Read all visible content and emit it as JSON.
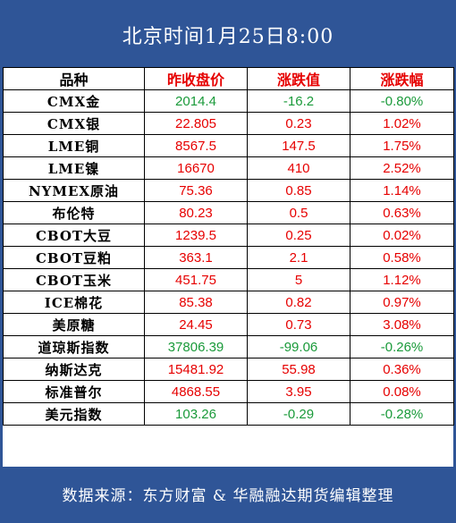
{
  "title": "北京时间1月25日8:00",
  "headers": [
    "品种",
    "昨收盘价",
    "涨跌值",
    "涨跌幅"
  ],
  "rows": [
    {
      "name": "CMX金",
      "close": "2014.4",
      "change": "-16.2",
      "pct": "-0.80%",
      "trend": "down"
    },
    {
      "name": "CMX银",
      "close": "22.805",
      "change": "0.23",
      "pct": "1.02%",
      "trend": "up"
    },
    {
      "name": "LME铜",
      "close": "8567.5",
      "change": "147.5",
      "pct": "1.75%",
      "trend": "up"
    },
    {
      "name": "LME镍",
      "close": "16670",
      "change": "410",
      "pct": "2.52%",
      "trend": "up"
    },
    {
      "name": "NYMEX原油",
      "close": "75.36",
      "change": "0.85",
      "pct": "1.14%",
      "trend": "up"
    },
    {
      "name": "布伦特",
      "close": "80.23",
      "change": "0.5",
      "pct": "0.63%",
      "trend": "up"
    },
    {
      "name": "CBOT大豆",
      "close": "1239.5",
      "change": "0.25",
      "pct": "0.02%",
      "trend": "up"
    },
    {
      "name": "CBOT豆粕",
      "close": "363.1",
      "change": "2.1",
      "pct": "0.58%",
      "trend": "up"
    },
    {
      "name": "CBOT玉米",
      "close": "451.75",
      "change": "5",
      "pct": "1.12%",
      "trend": "up"
    },
    {
      "name": "ICE棉花",
      "close": "85.38",
      "change": "0.82",
      "pct": "0.97%",
      "trend": "up"
    },
    {
      "name": "美原糖",
      "close": "24.45",
      "change": "0.73",
      "pct": "3.08%",
      "trend": "up"
    },
    {
      "name": "道琼斯指数",
      "close": "37806.39",
      "change": "-99.06",
      "pct": "-0.26%",
      "trend": "down"
    },
    {
      "name": "纳斯达克",
      "close": "15481.92",
      "change": "55.98",
      "pct": "0.36%",
      "trend": "up"
    },
    {
      "name": "标准普尔",
      "close": "4868.55",
      "change": "3.95",
      "pct": "0.08%",
      "trend": "up"
    },
    {
      "name": "美元指数",
      "close": "103.26",
      "change": "-0.29",
      "pct": "-0.28%",
      "trend": "down"
    }
  ],
  "footer": "数据来源：东方财富 & 华融融达期货编辑整理",
  "colors": {
    "brand": "#2f5597",
    "up": "#e60000",
    "down": "#1a9a3a"
  }
}
